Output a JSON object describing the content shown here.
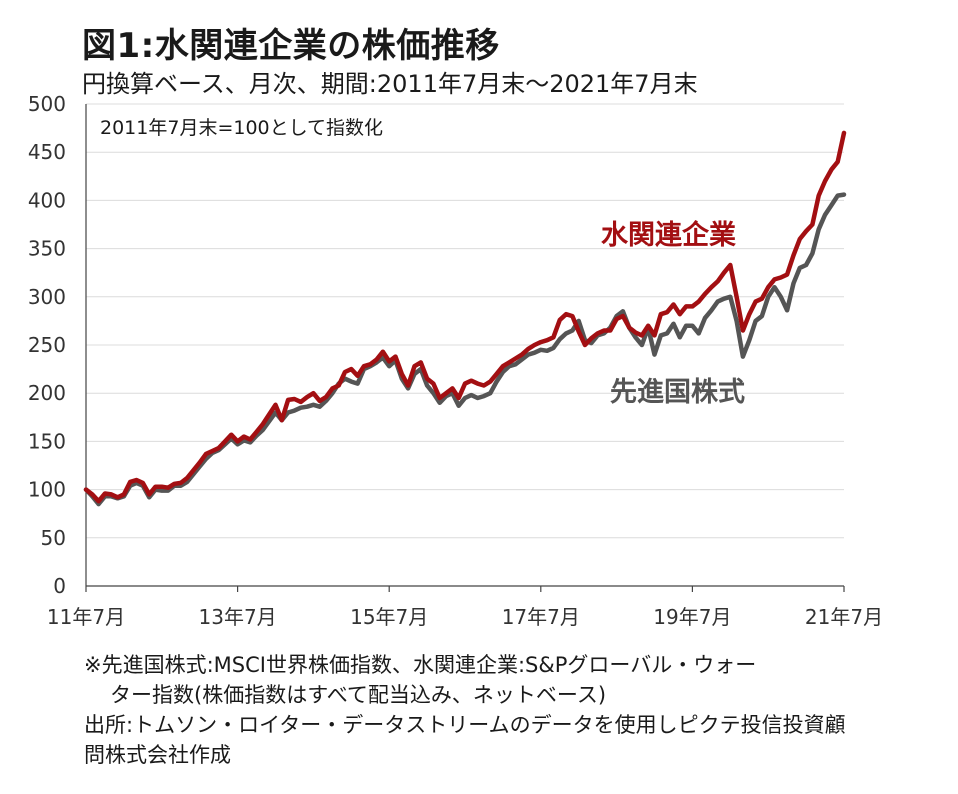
{
  "title": "図1:水関連企業の株価推移",
  "subtitle": "円換算ベース、月次、期間:2011年7月末〜2021年7月末",
  "notes": {
    "line1": "※先進国株式:MSCI世界株価指数、水関連企業:S&Pグローバル・ウォー",
    "line2": "ター指数(株価指数はすべて配当込み、ネットベース)",
    "line3": "出所:トムソン・ロイター・データストリームのデータを使用しピクテ投信投資顧",
    "line4": "問株式会社作成"
  },
  "chart_data": {
    "type": "line",
    "annotation": "2011年7月末=100として指数化",
    "x_labels": [
      "11年7月",
      "13年7月",
      "15年7月",
      "17年7月",
      "19年7月",
      "21年7月"
    ],
    "y_ticks": [
      0,
      50,
      100,
      150,
      200,
      250,
      300,
      350,
      400,
      450,
      500
    ],
    "ylim": [
      0,
      500
    ],
    "grid": true,
    "series": [
      {
        "name": "水関連企業",
        "color": "#a30f12",
        "values": [
          100,
          95,
          88,
          96,
          95,
          92,
          95,
          108,
          110,
          107,
          95,
          103,
          103,
          102,
          106,
          107,
          112,
          120,
          128,
          137,
          140,
          143,
          150,
          157,
          150,
          155,
          152,
          160,
          168,
          178,
          188,
          172,
          193,
          194,
          191,
          196,
          200,
          192,
          196,
          205,
          208,
          222,
          225,
          218,
          228,
          230,
          235,
          243,
          233,
          238,
          220,
          208,
          228,
          232,
          215,
          210,
          195,
          200,
          205,
          195,
          210,
          213,
          210,
          208,
          212,
          220,
          228,
          232,
          236,
          240,
          246,
          250,
          253,
          255,
          258,
          276,
          282,
          280,
          264,
          250,
          257,
          262,
          265,
          265,
          277,
          280,
          268,
          263,
          260,
          270,
          260,
          282,
          284,
          292,
          282,
          290,
          290,
          295,
          303,
          310,
          316,
          325,
          333,
          300,
          265,
          282,
          295,
          298,
          310,
          318,
          320,
          323,
          343,
          360,
          368,
          375,
          405,
          420,
          432,
          440,
          470
        ]
      },
      {
        "name": "先進国株式",
        "color": "#555555",
        "values": [
          100,
          93,
          85,
          93,
          93,
          91,
          93,
          104,
          107,
          104,
          92,
          100,
          99,
          99,
          104,
          104,
          108,
          116,
          124,
          132,
          138,
          141,
          147,
          153,
          147,
          151,
          149,
          156,
          162,
          171,
          180,
          172,
          180,
          182,
          185,
          186,
          188,
          186,
          192,
          200,
          210,
          215,
          212,
          210,
          225,
          228,
          232,
          237,
          228,
          234,
          215,
          205,
          220,
          225,
          208,
          200,
          190,
          197,
          200,
          187,
          195,
          198,
          195,
          197,
          200,
          212,
          222,
          228,
          230,
          235,
          240,
          242,
          245,
          244,
          247,
          256,
          262,
          265,
          275,
          255,
          252,
          260,
          262,
          268,
          280,
          285,
          268,
          258,
          250,
          268,
          240,
          260,
          262,
          272,
          258,
          270,
          270,
          262,
          278,
          286,
          295,
          298,
          300,
          275,
          238,
          255,
          275,
          280,
          300,
          310,
          300,
          286,
          314,
          330,
          333,
          345,
          370,
          385,
          395,
          405,
          406
        ]
      }
    ]
  }
}
